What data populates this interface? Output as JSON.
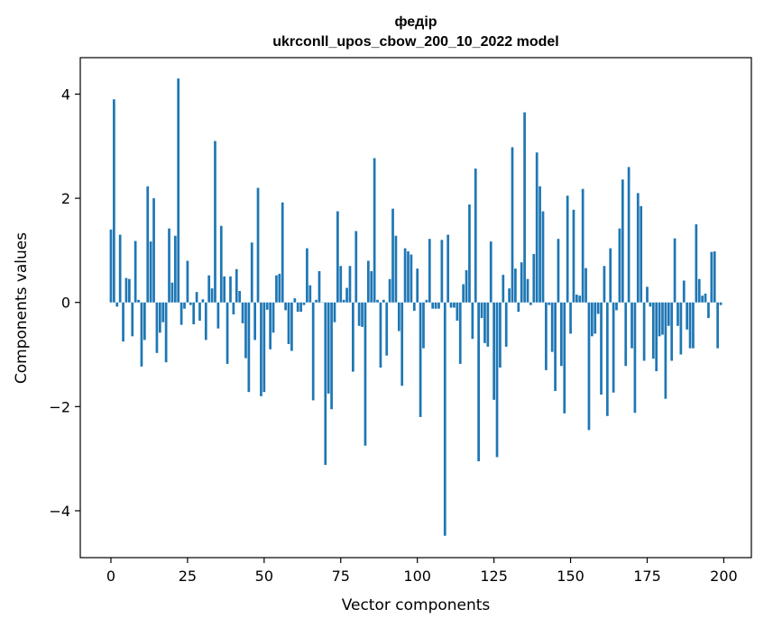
{
  "chart_data": {
    "type": "bar",
    "title": [
      "федір",
      "ukrconll_upos_cbow_200_10_2022 model"
    ],
    "xlabel": "Vector components",
    "ylabel": "Components values",
    "xlim": [
      -10,
      209
    ],
    "ylim": [
      -4.9,
      4.7
    ],
    "xticks": [
      0,
      25,
      50,
      75,
      100,
      125,
      150,
      175,
      200
    ],
    "xtick_labels": [
      "0",
      "25",
      "50",
      "75",
      "100",
      "125",
      "150",
      "175",
      "200"
    ],
    "yticks": [
      -4,
      -2,
      0,
      2,
      4
    ],
    "ytick_labels": [
      "−4",
      "−2",
      "0",
      "2",
      "4"
    ],
    "grid": false,
    "bar_color": "#1f77b4",
    "x": [
      0,
      1,
      2,
      3,
      4,
      5,
      6,
      7,
      8,
      9,
      10,
      11,
      12,
      13,
      14,
      15,
      16,
      17,
      18,
      19,
      20,
      21,
      22,
      23,
      24,
      25,
      26,
      27,
      28,
      29,
      30,
      31,
      32,
      33,
      34,
      35,
      36,
      37,
      38,
      39,
      40,
      41,
      42,
      43,
      44,
      45,
      46,
      47,
      48,
      49,
      50,
      51,
      52,
      53,
      54,
      55,
      56,
      57,
      58,
      59,
      60,
      61,
      62,
      63,
      64,
      65,
      66,
      67,
      68,
      69,
      70,
      71,
      72,
      73,
      74,
      75,
      76,
      77,
      78,
      79,
      80,
      81,
      82,
      83,
      84,
      85,
      86,
      87,
      88,
      89,
      90,
      91,
      92,
      93,
      94,
      95,
      96,
      97,
      98,
      99,
      100,
      101,
      102,
      103,
      104,
      105,
      106,
      107,
      108,
      109,
      110,
      111,
      112,
      113,
      114,
      115,
      116,
      117,
      118,
      119,
      120,
      121,
      122,
      123,
      124,
      125,
      126,
      127,
      128,
      129,
      130,
      131,
      132,
      133,
      134,
      135,
      136,
      137,
      138,
      139,
      140,
      141,
      142,
      143,
      144,
      145,
      146,
      147,
      148,
      149,
      150,
      151,
      152,
      153,
      154,
      155,
      156,
      157,
      158,
      159,
      160,
      161,
      162,
      163,
      164,
      165,
      166,
      167,
      168,
      169,
      170,
      171,
      172,
      173,
      174,
      175,
      176,
      177,
      178,
      179,
      180,
      181,
      182,
      183,
      184,
      185,
      186,
      187,
      188,
      189,
      190,
      191,
      192,
      193,
      194,
      195,
      196,
      197,
      198,
      199
    ],
    "values": [
      1.4,
      3.9,
      -0.08,
      1.3,
      -0.75,
      0.47,
      0.45,
      -0.65,
      1.18,
      0.05,
      -1.23,
      -0.72,
      2.23,
      1.17,
      2.0,
      -0.97,
      -0.58,
      -0.38,
      -1.15,
      1.42,
      0.38,
      1.28,
      4.3,
      -0.43,
      -0.12,
      0.8,
      -0.05,
      -0.42,
      0.2,
      -0.35,
      0.06,
      -0.72,
      0.52,
      0.27,
      3.1,
      -0.5,
      1.47,
      0.5,
      -1.18,
      0.5,
      -0.23,
      0.64,
      0.22,
      -0.4,
      -1.07,
      -1.72,
      1.15,
      -0.72,
      2.2,
      -1.8,
      -1.72,
      -0.14,
      -0.9,
      -0.58,
      0.52,
      0.55,
      1.92,
      -0.15,
      -0.8,
      -0.93,
      0.08,
      -0.18,
      -0.18,
      -0.05,
      1.04,
      0.33,
      -1.88,
      0.05,
      0.6,
      0.0,
      -3.12,
      -1.75,
      -2.05,
      -0.38,
      1.75,
      0.7,
      0.05,
      0.28,
      0.7,
      -1.33,
      1.37,
      -0.45,
      -0.47,
      -2.75,
      0.8,
      0.6,
      2.77,
      0.05,
      -1.25,
      0.05,
      -1.02,
      0.45,
      1.8,
      1.28,
      -0.55,
      -1.6,
      1.04,
      0.98,
      0.92,
      -0.16,
      0.65,
      -2.2,
      -0.88,
      0.05,
      1.22,
      -0.12,
      -0.12,
      -0.12,
      1.2,
      -4.48,
      1.3,
      -0.1,
      -0.1,
      -0.35,
      -1.18,
      0.35,
      0.62,
      1.88,
      -0.7,
      2.57,
      -3.05,
      -0.3,
      -0.78,
      -0.85,
      1.17,
      -1.87,
      -2.97,
      -1.25,
      0.53,
      -0.85,
      0.27,
      2.98,
      0.65,
      -0.18,
      0.77,
      3.65,
      0.45,
      -0.05,
      0.93,
      2.88,
      2.23,
      1.75,
      -1.3,
      -0.05,
      -0.95,
      -1.7,
      1.22,
      -1.22,
      -2.13,
      2.05,
      -0.6,
      1.78,
      0.15,
      0.13,
      2.18,
      0.66,
      -2.45,
      -0.65,
      -0.6,
      -0.22,
      -1.77,
      0.7,
      -2.18,
      1.04,
      -1.73,
      -0.15,
      1.42,
      2.36,
      -1.22,
      2.6,
      -0.88,
      -2.12,
      2.1,
      1.85,
      -1.12,
      0.3,
      -0.08,
      -1.08,
      -1.32,
      -0.65,
      -0.62,
      -1.85,
      -0.45,
      -1.12,
      1.23,
      -0.45,
      -1.0,
      0.42,
      -0.52,
      -0.88,
      -0.88,
      1.5,
      0.45,
      0.13,
      0.17,
      -0.3,
      0.97,
      0.98,
      -0.88,
      -0.05
    ]
  }
}
